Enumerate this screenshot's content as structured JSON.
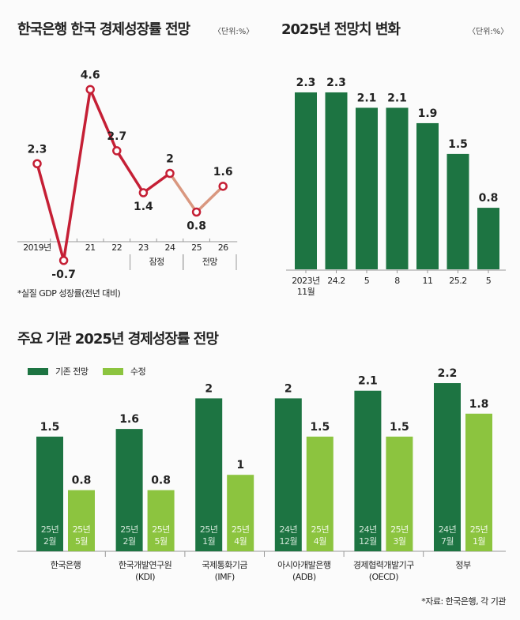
{
  "chart_data": [
    {
      "type": "line",
      "title": "한국은행 한국 경제성장률 전망",
      "unit": "〈단위:%〉",
      "categories": [
        "2019년",
        null,
        "21",
        "22",
        "23",
        "24",
        "25",
        "26"
      ],
      "values": [
        2.3,
        -0.7,
        4.6,
        2.7,
        1.4,
        2,
        0.8,
        1.6
      ],
      "color": "#c51f35",
      "ylim": [
        -1,
        5
      ],
      "periods": [
        {
          "label": "잠정",
          "start": 4,
          "end": 5
        },
        {
          "label": "전망",
          "start": 6,
          "end": 7,
          "color": "#d9977f"
        }
      ],
      "note": "*실질 GDP 성장률(전년 대비)"
    },
    {
      "type": "bar",
      "title": "2025년 전망치 변화",
      "unit": "〈단위:%〉",
      "categories": [
        "2023년 11월",
        "24.2",
        "5",
        "8",
        "11",
        "25.2",
        "5"
      ],
      "values": [
        2.3,
        2.3,
        2.1,
        2.1,
        1.9,
        1.5,
        0.8
      ],
      "color": "#1d7442",
      "ylim": [
        0,
        2.5
      ]
    },
    {
      "type": "grouped_bar",
      "title": "주요 기관 2025년 경제성장률 전망",
      "categories": [
        "한국은행",
        "한국개발연구원 (KDI)",
        "국제통화기금 (IMF)",
        "아시아개발은행 (ADB)",
        "경제협력개발기구 (OECD)",
        "정부"
      ],
      "series": [
        {
          "name": "기존 전망",
          "color": "#1d7442",
          "values": [
            1.5,
            1.6,
            2,
            2,
            2.1,
            2.2
          ],
          "dates": [
            "25년 2월",
            "25년 2월",
            "25년 1월",
            "24년 12월",
            "24년 12월",
            "24년 7월"
          ]
        },
        {
          "name": "수정",
          "color": "#8cc43f",
          "values": [
            0.8,
            0.8,
            1,
            1.5,
            1.5,
            1.8
          ],
          "dates": [
            "25년 5월",
            "25년 5월",
            "25년 4월",
            "25년 4월",
            "25년 3월",
            "25년 1월"
          ]
        }
      ],
      "ylim": [
        0,
        2.5
      ],
      "source": "*자료: 한국은행, 각 기관"
    }
  ]
}
